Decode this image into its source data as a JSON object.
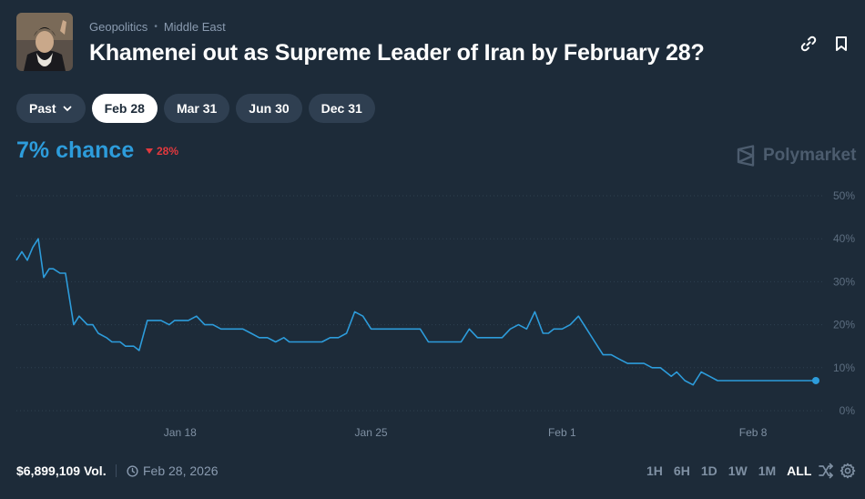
{
  "header": {
    "breadcrumb": [
      "Geopolitics",
      "Middle East"
    ],
    "title": "Khamenei out as Supreme Leader of Iran by February 28?"
  },
  "tabs": [
    {
      "label": "Past",
      "has_dropdown": true,
      "active": false
    },
    {
      "label": "Feb 28",
      "active": true
    },
    {
      "label": "Mar 31",
      "active": false
    },
    {
      "label": "Jun 30",
      "active": false
    },
    {
      "label": "Dec 31",
      "active": false
    }
  ],
  "summary": {
    "chance": "7% chance",
    "delta": "28%",
    "delta_direction": "down",
    "brand": "Polymarket"
  },
  "colors": {
    "line": "#2d9cdb",
    "accent": "#2d9cdb",
    "negative": "#e2393e",
    "background": "#1d2b39"
  },
  "chart_data": {
    "type": "line",
    "ylim": [
      0,
      50
    ],
    "y_ticks": [
      "0%",
      "10%",
      "20%",
      "30%",
      "40%",
      "50%"
    ],
    "x_ticks": [
      "Jan 18",
      "Jan 25",
      "Feb 1",
      "Feb 8"
    ],
    "x_tick_days": [
      18,
      25,
      32,
      39
    ],
    "grid": true,
    "series": [
      {
        "x": [
          12.0,
          12.2,
          12.4,
          12.6,
          12.8,
          13.0,
          13.2,
          13.35,
          13.6,
          13.8,
          14.1,
          14.3,
          14.6,
          14.8,
          15.0,
          15.3,
          15.5,
          15.8,
          16.0,
          16.3,
          16.5,
          16.8,
          17.0,
          17.3,
          17.6,
          17.8,
          18.0,
          18.3,
          18.6,
          18.9,
          19.2,
          19.5,
          19.7,
          20.0,
          20.3,
          20.6,
          20.9,
          21.2,
          21.5,
          21.8,
          22.0,
          22.3,
          22.6,
          22.9,
          23.2,
          23.5,
          23.8,
          24.1,
          24.4,
          24.7,
          25.0,
          25.3,
          25.6,
          25.9,
          26.2,
          26.5,
          26.8,
          27.1,
          27.4,
          27.7,
          28.0,
          28.3,
          28.6,
          28.9,
          29.2,
          29.5,
          29.8,
          30.1,
          30.4,
          30.7,
          31.0,
          31.3,
          31.5,
          31.7,
          32.0,
          32.3,
          32.6,
          32.9,
          33.2,
          33.5,
          33.8,
          34.1,
          34.4,
          34.7,
          35.0,
          35.3,
          35.6,
          35.8,
          36.0,
          36.2,
          36.5,
          36.8,
          37.1,
          37.4,
          37.7,
          38.0,
          38.3,
          38.6,
          38.9,
          39.2,
          39.5,
          40.0,
          40.5,
          41.0,
          41.3
        ],
        "y": [
          35,
          37,
          35,
          38,
          40,
          31,
          33,
          33,
          32,
          32,
          20,
          22,
          20,
          20,
          18,
          17,
          16,
          16,
          15,
          15,
          14,
          21,
          21,
          21,
          20,
          21,
          21,
          21,
          22,
          20,
          20,
          19,
          19,
          19,
          19,
          18,
          17,
          17,
          16,
          17,
          16,
          16,
          16,
          16,
          16,
          17,
          17,
          18,
          23,
          22,
          19,
          19,
          19,
          19,
          19,
          19,
          19,
          16,
          16,
          16,
          16,
          16,
          19,
          17,
          17,
          17,
          17,
          19,
          20,
          19,
          23,
          18,
          18,
          19,
          19,
          20,
          22,
          19,
          16,
          13,
          13,
          12,
          11,
          11,
          11,
          10,
          10,
          9,
          8,
          9,
          7,
          6,
          9,
          8,
          7,
          7,
          7,
          7,
          7,
          7,
          7,
          7,
          7,
          7,
          7
        ]
      }
    ]
  },
  "footer": {
    "volume": "$6,899,109 Vol.",
    "date": "Feb 28, 2026",
    "ranges": [
      "1H",
      "6H",
      "1D",
      "1W",
      "1M",
      "ALL"
    ],
    "active_range": "ALL"
  }
}
